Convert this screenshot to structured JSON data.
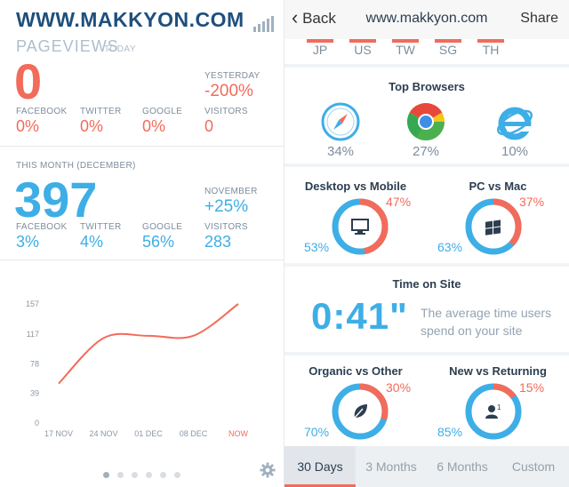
{
  "left": {
    "site_title": "WWW.MAKKYON.COM",
    "pageviews_label": "PAGEVIEWS",
    "today_label": "TODAY",
    "today_value": "0",
    "yesterday_label": "YESTERDAY",
    "yesterday_value": "-200%",
    "today_stats": [
      {
        "label": "FACEBOOK",
        "value": "0%"
      },
      {
        "label": "TWITTER",
        "value": "0%"
      },
      {
        "label": "GOOGLE",
        "value": "0%"
      },
      {
        "label": "VISITORS",
        "value": "0"
      }
    ],
    "month_label": "THIS MONTH  (DECEMBER)",
    "month_value": "397",
    "prev_month_label": "NOVEMBER",
    "prev_month_value": "+25%",
    "month_stats": [
      {
        "label": "FACEBOOK",
        "value": "3%"
      },
      {
        "label": "TWITTER",
        "value": "4%"
      },
      {
        "label": "GOOGLE",
        "value": "56%"
      },
      {
        "label": "VISITORS",
        "value": "283"
      }
    ],
    "pages": 6,
    "active_page": 0
  },
  "chart_data": {
    "type": "line",
    "x": [
      "17 NOV",
      "24 NOV",
      "01 DEC",
      "08 DEC",
      "NOW"
    ],
    "series": [
      {
        "values": [
          52,
          112,
          115,
          115,
          157
        ]
      }
    ],
    "y_ticks": [
      0,
      39,
      78,
      117,
      157
    ],
    "ylim": [
      0,
      157
    ],
    "color": "#f26b5b",
    "highlight_last_tick_color": "#f26b5b"
  },
  "right": {
    "back_label": "Back",
    "nav_title": "www.makkyon.com",
    "share_label": "Share",
    "countries": [
      "JP",
      "US",
      "TW",
      "SG",
      "TH"
    ],
    "browsers_title": "Top Browsers",
    "browsers": [
      {
        "icon": "safari-icon",
        "value": "34%"
      },
      {
        "icon": "chrome-icon",
        "value": "27%"
      },
      {
        "icon": "ie-icon",
        "value": "10%"
      }
    ],
    "desktop_mobile": {
      "title": "Desktop vs Mobile",
      "a": "53%",
      "b": "47%",
      "icon": "monitor-icon",
      "share_b": 0.47
    },
    "pc_mac": {
      "title": "PC vs Mac",
      "a": "63%",
      "b": "37%",
      "icon": "windows-icon",
      "share_b": 0.37
    },
    "time_title": "Time on Site",
    "time_value": "0:41\"",
    "time_desc": "The average time users spend on your site",
    "organic_other": {
      "title": "Organic vs Other",
      "a": "70%",
      "b": "30%",
      "icon": "leaf-icon",
      "share_b": 0.3
    },
    "new_returning": {
      "title": "New vs Returning",
      "a": "85%",
      "b": "15%",
      "icon": "user-icon",
      "share_b": 0.15
    },
    "tabs": [
      "30 Days",
      "3 Months",
      "6 Months",
      "Custom"
    ],
    "active_tab": 0
  },
  "colors": {
    "orange": "#f26b5b",
    "blue": "#3eaee6",
    "navy": "#1f4f7c"
  }
}
